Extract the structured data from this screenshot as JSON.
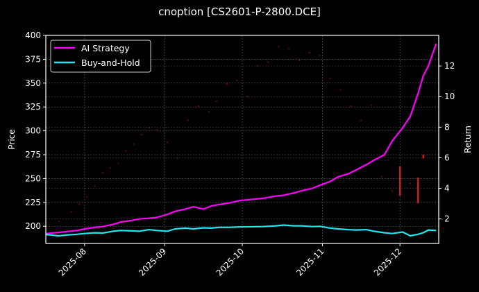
{
  "title": "cnoption [CS2601-P-2800.DCE]",
  "chart_data": {
    "type": "line",
    "title": "cnoption [CS2601-P-2800.DCE]",
    "xlabel": "",
    "ylabel": "Price",
    "y2label": "Return",
    "grid": true,
    "legend_position": "upper left",
    "xlim": [
      "2025-07-17",
      "2025-12-16"
    ],
    "ylim": [
      182,
      400
    ],
    "y2lim": [
      0.4,
      14.0
    ],
    "x_ticks": [
      "2025-08",
      "2025-09",
      "2025-10",
      "2025-11",
      "2025-12"
    ],
    "y_ticks": [
      200,
      225,
      250,
      275,
      300,
      325,
      350,
      375,
      400
    ],
    "y2_ticks": [
      2,
      4,
      6,
      8,
      10,
      12
    ],
    "legend": [
      {
        "label": "AI Strategy",
        "color": "#ff00ff"
      },
      {
        "label": "Buy-and-Hold",
        "color": "#22e5ee"
      }
    ],
    "series": [
      {
        "name": "AI Strategy",
        "axis": "right",
        "color": "#ff00ff",
        "x": [
          "2025-07-17",
          "2025-07-22",
          "2025-07-25",
          "2025-07-29",
          "2025-08-01",
          "2025-08-05",
          "2025-08-08",
          "2025-08-12",
          "2025-08-15",
          "2025-08-19",
          "2025-08-22",
          "2025-08-26",
          "2025-08-29",
          "2025-09-02",
          "2025-09-05",
          "2025-09-09",
          "2025-09-12",
          "2025-09-16",
          "2025-09-19",
          "2025-09-22",
          "2025-09-26",
          "2025-09-30",
          "2025-10-09",
          "2025-10-14",
          "2025-10-17",
          "2025-10-21",
          "2025-10-24",
          "2025-10-28",
          "2025-10-31",
          "2025-11-04",
          "2025-11-07",
          "2025-11-11",
          "2025-11-14",
          "2025-11-18",
          "2025-11-21",
          "2025-11-25",
          "2025-11-28",
          "2025-12-02",
          "2025-12-05",
          "2025-12-08",
          "2025-12-10",
          "2025-12-12",
          "2025-12-15"
        ],
        "values": [
          1.05,
          1.12,
          1.18,
          1.25,
          1.35,
          1.45,
          1.5,
          1.65,
          1.8,
          1.9,
          2.0,
          2.05,
          2.1,
          2.3,
          2.5,
          2.65,
          2.8,
          2.65,
          2.85,
          2.95,
          3.05,
          3.2,
          3.35,
          3.5,
          3.55,
          3.7,
          3.85,
          4.0,
          4.2,
          4.45,
          4.75,
          4.95,
          5.2,
          5.55,
          5.85,
          6.2,
          7.1,
          7.95,
          8.7,
          10.2,
          11.35,
          12.0,
          13.45
        ]
      },
      {
        "name": "Buy-and-Hold",
        "axis": "right",
        "color": "#22e5ee",
        "x": [
          "2025-07-17",
          "2025-07-22",
          "2025-07-25",
          "2025-07-29",
          "2025-08-01",
          "2025-08-05",
          "2025-08-08",
          "2025-08-12",
          "2025-08-15",
          "2025-08-19",
          "2025-08-22",
          "2025-08-26",
          "2025-08-29",
          "2025-09-02",
          "2025-09-05",
          "2025-09-09",
          "2025-09-12",
          "2025-09-16",
          "2025-09-19",
          "2025-09-22",
          "2025-09-26",
          "2025-09-30",
          "2025-10-09",
          "2025-10-14",
          "2025-10-17",
          "2025-10-21",
          "2025-10-24",
          "2025-10-28",
          "2025-10-31",
          "2025-11-04",
          "2025-11-07",
          "2025-11-11",
          "2025-11-14",
          "2025-11-18",
          "2025-11-21",
          "2025-11-25",
          "2025-11-28",
          "2025-12-02",
          "2025-12-05",
          "2025-12-08",
          "2025-12-10",
          "2025-12-12",
          "2025-12-15"
        ],
        "values": [
          0.98,
          0.9,
          0.95,
          1.0,
          1.05,
          1.1,
          1.08,
          1.2,
          1.25,
          1.22,
          1.2,
          1.3,
          1.25,
          1.2,
          1.35,
          1.4,
          1.35,
          1.42,
          1.4,
          1.45,
          1.45,
          1.48,
          1.5,
          1.55,
          1.6,
          1.55,
          1.55,
          1.5,
          1.52,
          1.4,
          1.35,
          1.3,
          1.28,
          1.3,
          1.2,
          1.1,
          1.05,
          1.15,
          0.9,
          1.0,
          1.1,
          1.28,
          1.25
        ]
      },
      {
        "name": "Price",
        "axis": "left",
        "color": "#ff2020",
        "style": "candles (mostly dim/transparent, last bars visible)",
        "x": [
          "2025-07-22",
          "2025-07-27",
          "2025-07-30",
          "2025-08-02",
          "2025-08-05",
          "2025-08-08",
          "2025-08-11",
          "2025-08-14",
          "2025-08-17",
          "2025-08-20",
          "2025-08-23",
          "2025-08-26",
          "2025-08-29",
          "2025-09-02",
          "2025-09-06",
          "2025-09-10",
          "2025-09-14",
          "2025-09-18",
          "2025-09-21",
          "2025-09-25",
          "2025-09-29",
          "2025-10-03",
          "2025-10-07",
          "2025-10-11",
          "2025-10-15",
          "2025-10-19",
          "2025-10-23",
          "2025-10-27",
          "2025-10-31",
          "2025-11-04",
          "2025-11-08",
          "2025-11-12",
          "2025-11-16",
          "2025-11-20",
          "2025-11-24",
          "2025-11-28",
          "2025-12-01",
          "2025-12-05",
          "2025-12-08",
          "2025-12-10"
        ],
        "values": [
          205,
          215,
          223,
          231,
          242,
          256,
          261,
          266,
          279,
          286,
          296,
          303,
          301,
          288,
          271,
          311,
          326,
          320,
          331,
          349,
          353,
          336,
          368,
          372,
          388,
          386,
          374,
          382,
          379,
          355,
          343,
          326,
          311,
          327,
          252,
          237,
          248,
          245,
          238,
          274
        ]
      }
    ]
  },
  "legend": {
    "items": [
      {
        "label": "AI Strategy",
        "color": "#ff00ff"
      },
      {
        "label": "Buy-and-Hold",
        "color": "#22e5ee"
      }
    ]
  },
  "axes": {
    "left_label": "Price",
    "right_label": "Return",
    "x_ticks": [
      "2025-08",
      "2025-09",
      "2025-10",
      "2025-11",
      "2025-12"
    ],
    "y_ticks": [
      "200",
      "225",
      "250",
      "275",
      "300",
      "325",
      "350",
      "375",
      "400"
    ],
    "y2_ticks": [
      "2",
      "4",
      "6",
      "8",
      "10",
      "12"
    ]
  }
}
